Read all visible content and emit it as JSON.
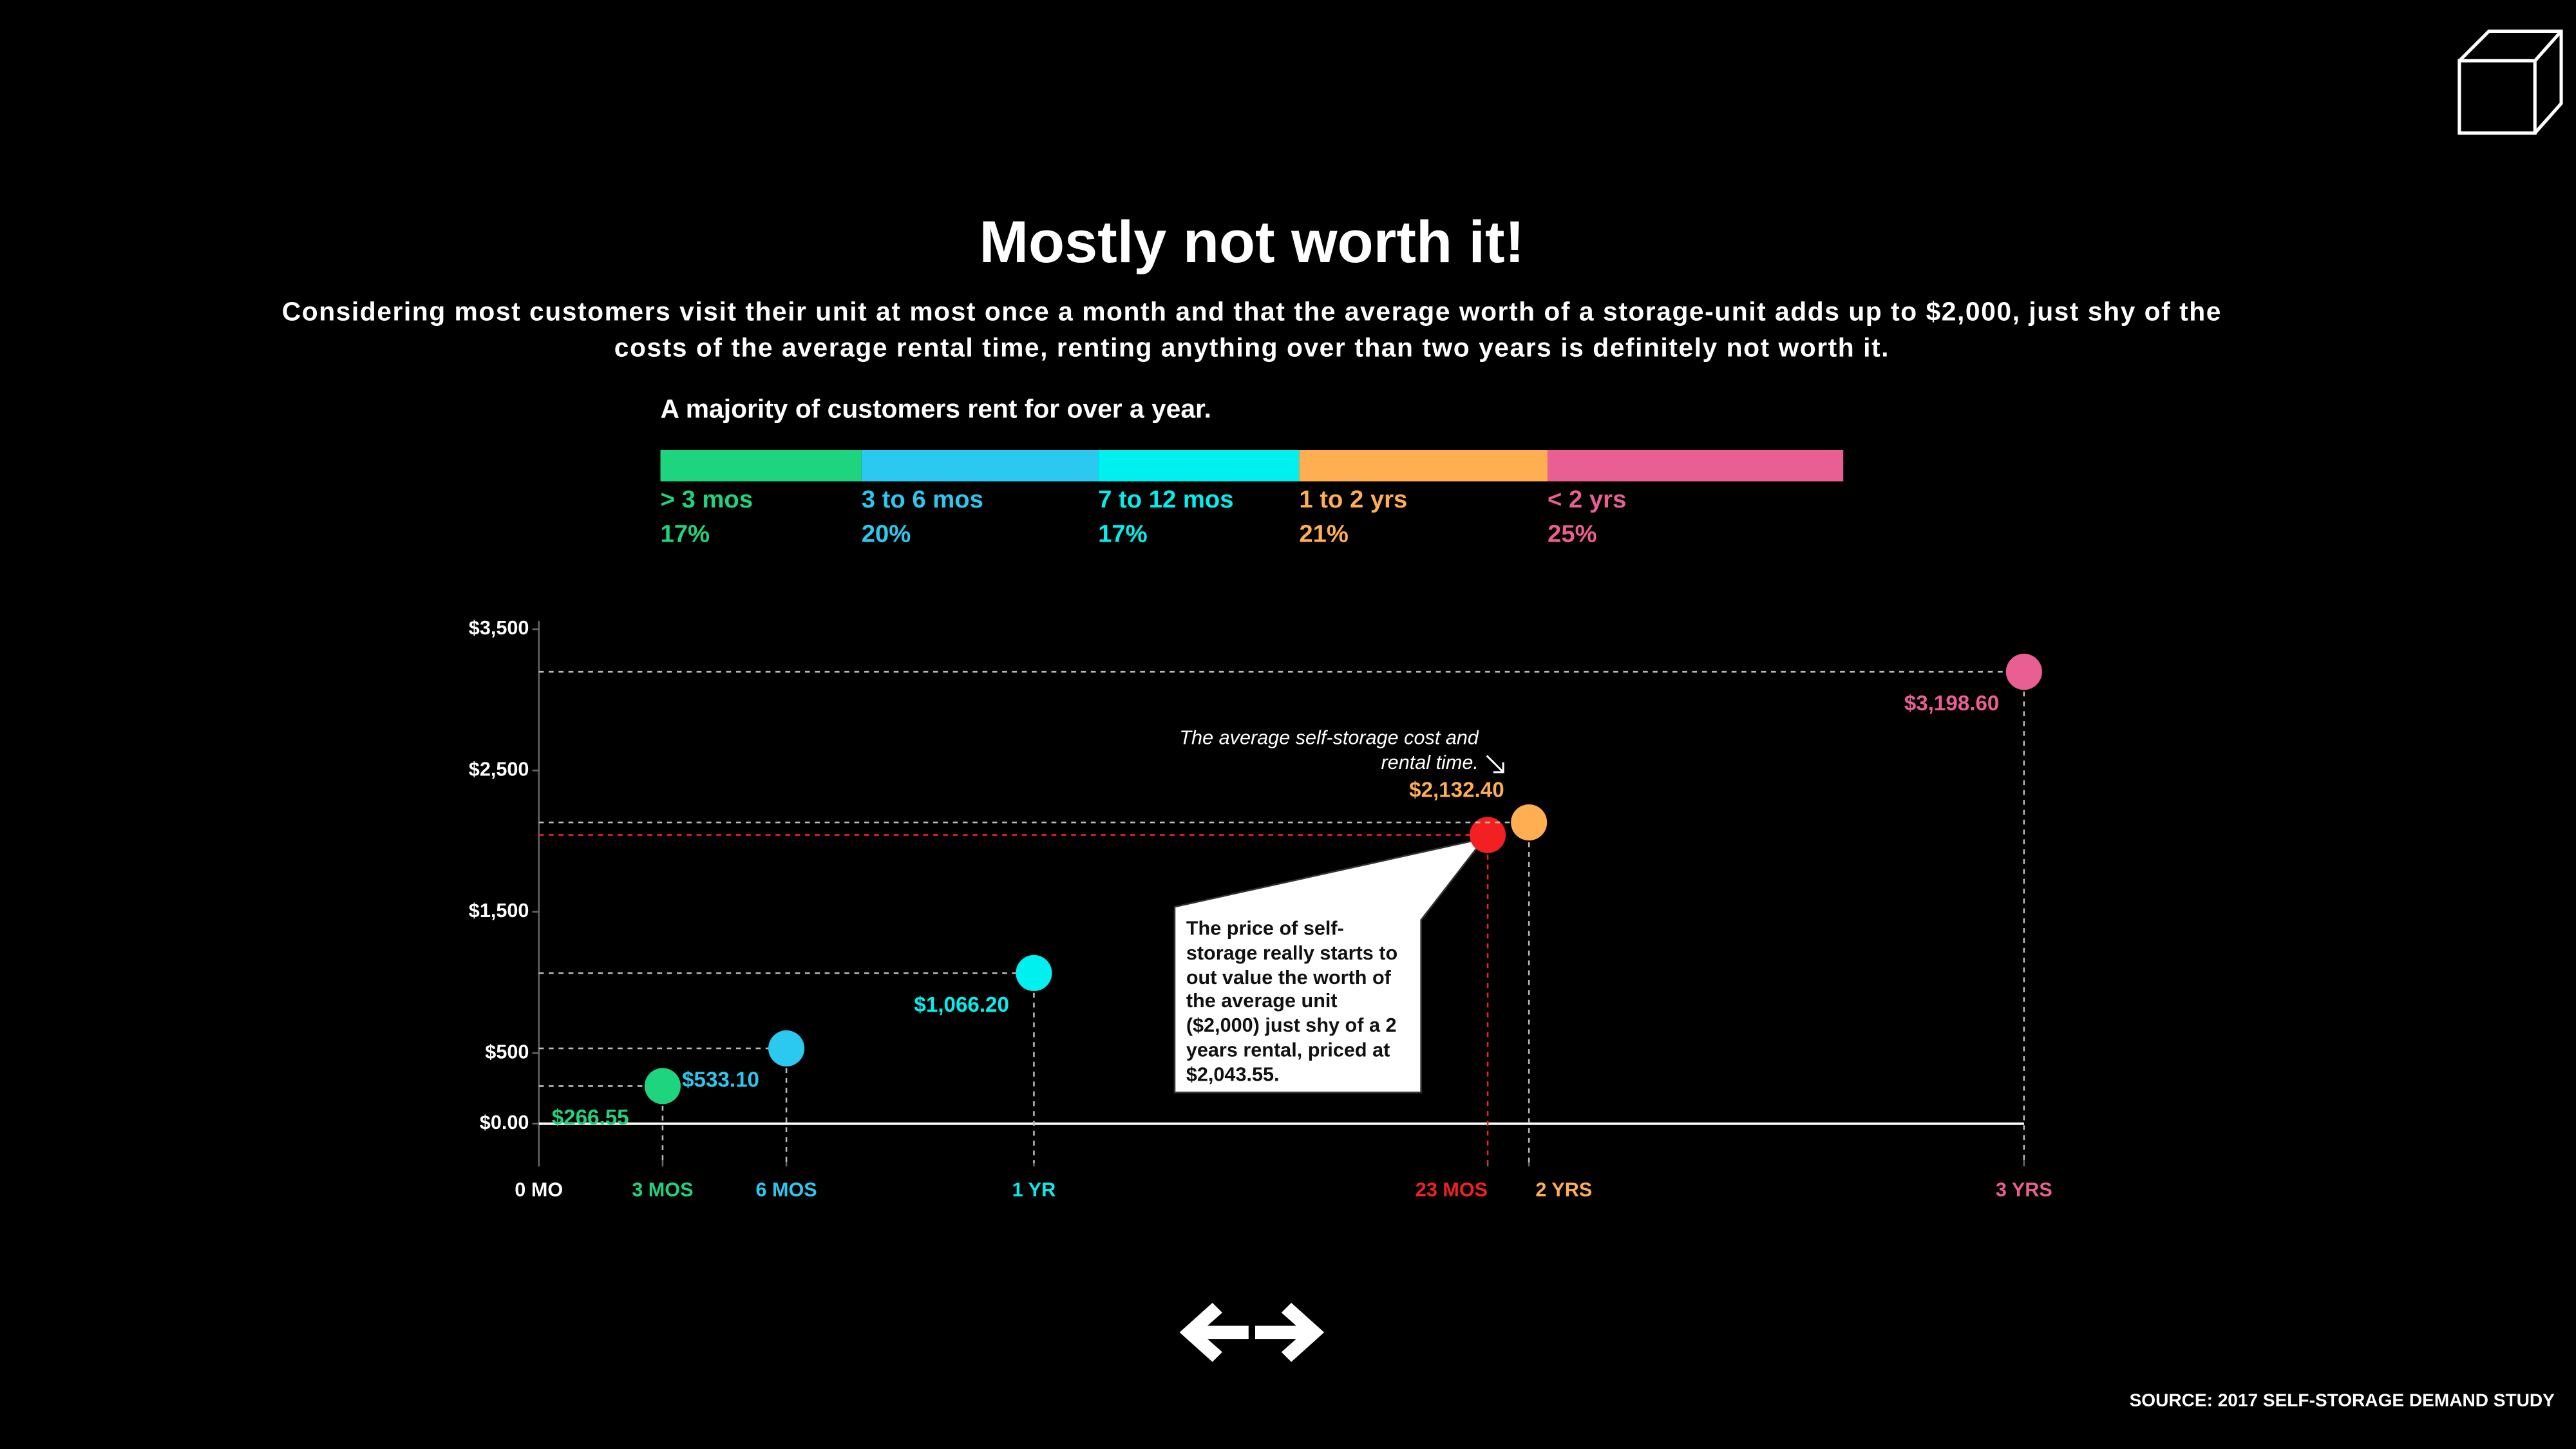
{
  "header": {
    "title": "Mostly not worth it!",
    "subtitle": "Considering most customers visit their unit at most once a month and that the average worth of a storage-unit adds up to $2,000, just shy of the costs of the average rental time, renting anything over than two years is definitely not worth it."
  },
  "source": "SOURCE: 2017 SELF-STORAGE DEMAND STUDY",
  "chart_data": [
    {
      "type": "stacked_bar",
      "title": "A majority of customers rent for over a year.",
      "categories": [
        "> 3 mos",
        "3 to 6 mos",
        "7 to 12 mos",
        "1 to 2 yrs",
        "< 2 yrs"
      ],
      "values": [
        17,
        20,
        17,
        21,
        25
      ],
      "value_labels": [
        "17%",
        "20%",
        "17%",
        "21%",
        "25%"
      ],
      "colors": [
        "#1ed47e",
        "#2bc8f0",
        "#00f0f0",
        "#ffae52",
        "#ea5f93"
      ]
    },
    {
      "type": "scatter",
      "x": [
        3,
        6,
        12,
        23,
        24,
        36
      ],
      "values": [
        266.55,
        533.1,
        1066.2,
        2043.55,
        2132.4,
        3198.6
      ],
      "value_labels": [
        "$266.55",
        "$533.10",
        "$1,066.20",
        null,
        "$2,132.40",
        "$3,198.60"
      ],
      "colors": [
        "#1ed47e",
        "#2bc8f0",
        "#00f0f0",
        "#f22020",
        "#ffae52",
        "#ea5f93"
      ],
      "xlim": [
        0,
        36
      ],
      "xticks": [
        {
          "value": 0,
          "label": "0 MO"
        },
        {
          "value": 3,
          "label": "3 MOS"
        },
        {
          "value": 6,
          "label": "6 MOS"
        },
        {
          "value": 12,
          "label": "1 YR"
        },
        {
          "value": 23,
          "label": "23 MOS"
        },
        {
          "value": 24,
          "label": "2 YRS"
        },
        {
          "value": 36,
          "label": "3 YRS"
        }
      ],
      "ylim": [
        0,
        3500
      ],
      "yticks": [
        {
          "value": 0,
          "label": "$0.00"
        },
        {
          "value": 500,
          "label": "$500"
        },
        {
          "value": 1500,
          "label": "$1,500"
        },
        {
          "value": 2500,
          "label": "$2,500"
        },
        {
          "value": 3500,
          "label": "$3,500"
        }
      ],
      "note": "The average self-storage cost and rental time.",
      "callout": "The price of self-storage really starts to out value the worth of the average unit ($2,000) just shy of a 2 years rental, priced at $2,043.55."
    }
  ]
}
